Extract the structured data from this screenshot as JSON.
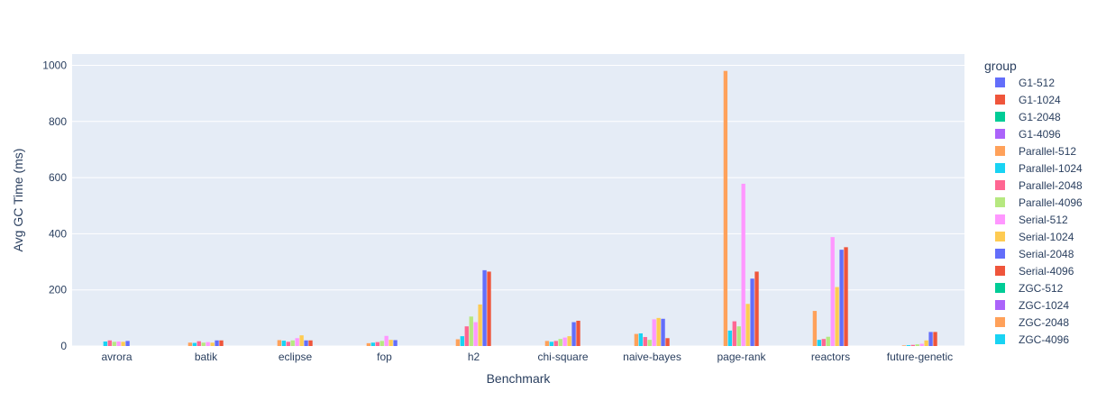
{
  "chart_data": {
    "type": "bar",
    "title": "",
    "xlabel": "Benchmark",
    "ylabel": "Avg GC Time (ms)",
    "ylim": [
      0,
      1040
    ],
    "yticks": [
      0,
      200,
      400,
      600,
      800,
      1000
    ],
    "grid": true,
    "legend_title": "group",
    "legend_position": "right",
    "categories": [
      "avrora",
      "batik",
      "eclipse",
      "fop",
      "h2",
      "chi-square",
      "naive-bayes",
      "page-rank",
      "reactors",
      "future-genetic"
    ],
    "series": [
      {
        "name": "G1-512",
        "color": "#636efa",
        "values": [
          0,
          0,
          0,
          0,
          0,
          0,
          0,
          0,
          0,
          0
        ]
      },
      {
        "name": "G1-1024",
        "color": "#EF553B",
        "values": [
          0,
          0,
          0,
          0,
          0,
          0,
          0,
          0,
          0,
          0
        ]
      },
      {
        "name": "G1-2048",
        "color": "#00cc96",
        "values": [
          0,
          0,
          0,
          0,
          0,
          0,
          0,
          0,
          0,
          0
        ]
      },
      {
        "name": "G1-4096",
        "color": "#ab63fa",
        "values": [
          0,
          0,
          0,
          0,
          0,
          0,
          0,
          0,
          0,
          0
        ]
      },
      {
        "name": "Parallel-512",
        "color": "#FFA15A",
        "values": [
          0,
          12,
          21,
          10,
          24,
          18,
          43,
          980,
          125,
          2
        ]
      },
      {
        "name": "Parallel-1024",
        "color": "#19d3f3",
        "values": [
          16,
          11,
          19,
          12,
          35,
          15,
          45,
          55,
          22,
          3
        ]
      },
      {
        "name": "Parallel-2048",
        "color": "#FF6692",
        "values": [
          20,
          17,
          15,
          14,
          70,
          18,
          32,
          88,
          25,
          4
        ]
      },
      {
        "name": "Parallel-4096",
        "color": "#B6E880",
        "values": [
          15,
          12,
          20,
          18,
          105,
          25,
          22,
          70,
          33,
          6
        ]
      },
      {
        "name": "Serial-512",
        "color": "#FF97FF",
        "values": [
          16,
          14,
          28,
          36,
          85,
          30,
          95,
          578,
          388,
          8
        ]
      },
      {
        "name": "Serial-1024",
        "color": "#FECB52",
        "values": [
          15,
          12,
          38,
          22,
          148,
          35,
          100,
          150,
          210,
          20
        ]
      },
      {
        "name": "Serial-2048",
        "color": "#636efa",
        "values": [
          18,
          20,
          20,
          21,
          270,
          85,
          97,
          240,
          343,
          50
        ]
      },
      {
        "name": "Serial-4096",
        "color": "#EF553B",
        "values": [
          0,
          20,
          20,
          0,
          265,
          90,
          28,
          265,
          352,
          50
        ]
      },
      {
        "name": "ZGC-512",
        "color": "#00cc96",
        "values": [
          0,
          0,
          0,
          0,
          0,
          0,
          0,
          0,
          0,
          0
        ]
      },
      {
        "name": "ZGC-1024",
        "color": "#ab63fa",
        "values": [
          0,
          0,
          0,
          0,
          0,
          0,
          0,
          0,
          0,
          0
        ]
      },
      {
        "name": "ZGC-2048",
        "color": "#FFA15A",
        "values": [
          0,
          0,
          0,
          0,
          0,
          0,
          0,
          0,
          0,
          0
        ]
      },
      {
        "name": "ZGC-4096",
        "color": "#19d3f3",
        "values": [
          0,
          0,
          0,
          0,
          0,
          0,
          0,
          0,
          0,
          0
        ]
      }
    ]
  }
}
